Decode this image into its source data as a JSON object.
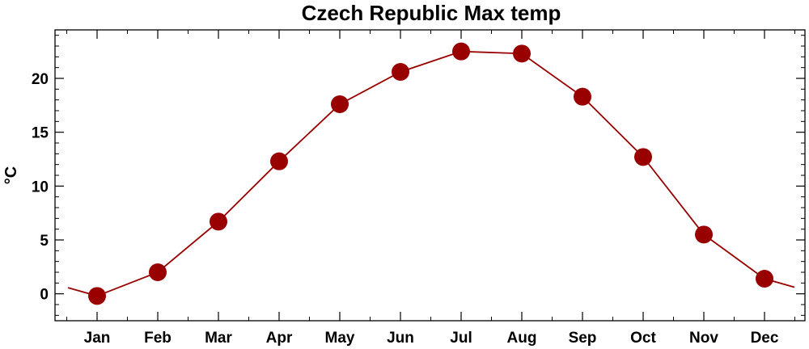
{
  "chart_data": {
    "type": "line",
    "title": "Czech Republic Max temp",
    "xlabel": "",
    "ylabel": "°C",
    "categories": [
      "Jan",
      "Feb",
      "Mar",
      "Apr",
      "May",
      "Jun",
      "Jul",
      "Aug",
      "Sep",
      "Oct",
      "Nov",
      "Dec"
    ],
    "series": [
      {
        "values": [
          -0.2,
          2.0,
          6.7,
          12.3,
          17.6,
          20.6,
          22.5,
          22.3,
          18.3,
          12.7,
          5.5,
          1.4
        ]
      }
    ],
    "ylim": [
      -2.5,
      24.5
    ],
    "yticks": [
      0,
      5,
      10,
      15,
      20
    ],
    "grid": false,
    "legend": "none",
    "colors": {
      "series": "#990000",
      "axis": "#000000"
    }
  }
}
